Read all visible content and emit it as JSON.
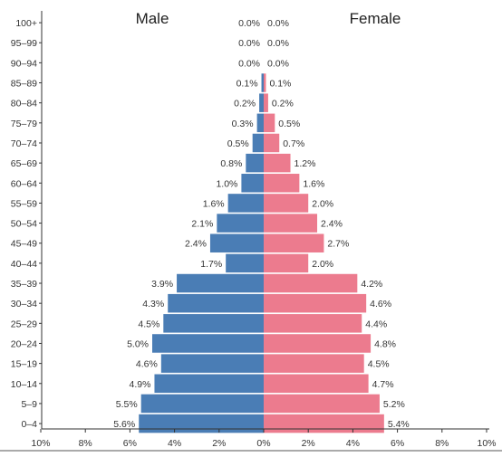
{
  "chart_data": {
    "type": "bar",
    "orientation": "horizontal",
    "subtype": "population-pyramid",
    "categories": [
      "0–4",
      "5–9",
      "10–14",
      "15–19",
      "20–24",
      "25–29",
      "30–34",
      "35–39",
      "40–44",
      "45–49",
      "50–54",
      "55–59",
      "60–64",
      "65–69",
      "70–74",
      "75–79",
      "80–84",
      "85–89",
      "90–94",
      "95–99",
      "100+"
    ],
    "series": [
      {
        "name": "Male",
        "color": "#4a7db5",
        "values": [
          5.6,
          5.5,
          4.9,
          4.6,
          5.0,
          4.5,
          4.3,
          3.9,
          1.7,
          2.4,
          2.1,
          1.6,
          1.0,
          0.8,
          0.5,
          0.3,
          0.2,
          0.1,
          0.0,
          0.0,
          0.0
        ],
        "labels": [
          "5.6%",
          "5.5%",
          "4.9%",
          "4.6%",
          "5.0%",
          "4.5%",
          "4.3%",
          "3.9%",
          "1.7%",
          "2.4%",
          "2.1%",
          "1.6%",
          "1.0%",
          "0.8%",
          "0.5%",
          "0.3%",
          "0.2%",
          "0.1%",
          "0.0%",
          "0.0%",
          "0.0%"
        ]
      },
      {
        "name": "Female",
        "color": "#ec7b8e",
        "values": [
          5.4,
          5.2,
          4.7,
          4.5,
          4.8,
          4.4,
          4.6,
          4.2,
          2.0,
          2.7,
          2.4,
          2.0,
          1.6,
          1.2,
          0.7,
          0.5,
          0.2,
          0.1,
          0.0,
          0.0,
          0.0
        ],
        "labels": [
          "5.4%",
          "5.2%",
          "4.7%",
          "4.5%",
          "4.8%",
          "4.4%",
          "4.6%",
          "4.2%",
          "2.0%",
          "2.7%",
          "2.4%",
          "2.0%",
          "1.6%",
          "1.2%",
          "0.7%",
          "0.5%",
          "0.2%",
          "0.1%",
          "0.0%",
          "0.0%",
          "0.0%"
        ]
      }
    ],
    "x_ticks": [
      "10%",
      "8%",
      "6%",
      "4%",
      "2%",
      "0%",
      "2%",
      "4%",
      "6%",
      "8%",
      "10%"
    ],
    "xlim": [
      -10,
      10
    ],
    "title_left": "Male",
    "title_right": "Female",
    "grid": false
  }
}
